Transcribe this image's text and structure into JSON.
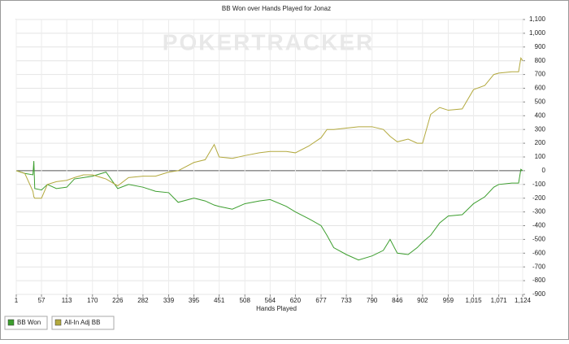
{
  "chart_data": {
    "type": "line",
    "title": "BB Won over Hands Played for Jonaz",
    "watermark": "POKERTRACKER",
    "x_label": "Hands Played",
    "x": [
      1,
      20,
      38,
      40,
      42,
      57,
      70,
      90,
      113,
      130,
      150,
      170,
      200,
      226,
      250,
      282,
      310,
      339,
      360,
      395,
      420,
      440,
      451,
      480,
      508,
      540,
      564,
      600,
      620,
      650,
      677,
      690,
      705,
      733,
      760,
      790,
      815,
      830,
      846,
      870,
      890,
      902,
      920,
      940,
      959,
      990,
      1015,
      1040,
      1060,
      1071,
      1100,
      1115,
      1120,
      1124
    ],
    "series": [
      {
        "name": "BB Won",
        "color": "#3c9e2e",
        "values": [
          0,
          -20,
          -30,
          70,
          -130,
          -140,
          -100,
          -130,
          -120,
          -60,
          -50,
          -40,
          -10,
          -130,
          -100,
          -120,
          -150,
          -160,
          -230,
          -200,
          -220,
          -250,
          -260,
          -280,
          -240,
          -220,
          -210,
          -260,
          -300,
          -350,
          -400,
          -470,
          -560,
          -610,
          -650,
          -620,
          -580,
          -500,
          -600,
          -610,
          -560,
          -520,
          -470,
          -380,
          -330,
          -320,
          -240,
          -190,
          -120,
          -100,
          -90,
          -90,
          10,
          0
        ]
      },
      {
        "name": "All-In Adj BB",
        "color": "#b3a93e",
        "values": [
          0,
          -20,
          -150,
          -190,
          -200,
          -200,
          -100,
          -80,
          -70,
          -50,
          -30,
          -30,
          -60,
          -110,
          -50,
          -40,
          -40,
          -10,
          0,
          60,
          80,
          190,
          100,
          90,
          110,
          130,
          140,
          140,
          130,
          180,
          240,
          300,
          300,
          310,
          320,
          320,
          300,
          250,
          210,
          230,
          200,
          200,
          410,
          460,
          440,
          450,
          590,
          620,
          700,
          710,
          720,
          720,
          820,
          800
        ]
      }
    ],
    "xlim": [
      1,
      1124
    ],
    "xticks": [
      1,
      57,
      113,
      170,
      226,
      282,
      339,
      395,
      451,
      508,
      564,
      620,
      677,
      733,
      790,
      846,
      902,
      959,
      {
        "value": 1015,
        "label": "1,015"
      },
      {
        "value": 1071,
        "label": "1,071"
      },
      {
        "value": 1124,
        "label": "1,124"
      }
    ],
    "ylim": [
      -900,
      1100
    ],
    "yticks": [
      -900,
      -800,
      -700,
      -600,
      -500,
      -400,
      -300,
      -200,
      -100,
      0,
      100,
      200,
      300,
      400,
      500,
      600,
      700,
      800,
      900,
      {
        "value": 1000,
        "label": "1,000"
      },
      {
        "value": 1100,
        "label": "1,100"
      }
    ],
    "grid": true
  }
}
